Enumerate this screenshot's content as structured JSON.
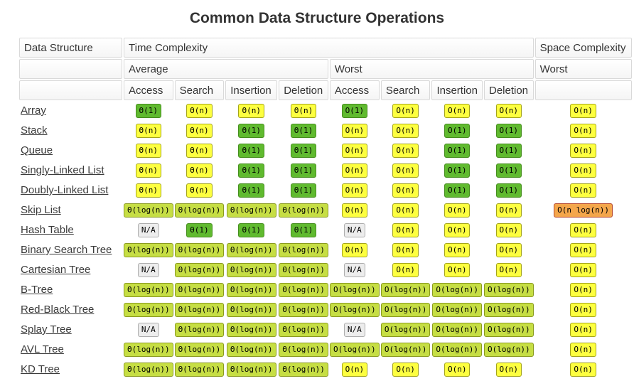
{
  "title": "Common Data Structure Operations",
  "header": {
    "data_structure": "Data Structure",
    "time_complexity": "Time Complexity",
    "space_complexity": "Space Complexity",
    "average": "Average",
    "worst": "Worst",
    "space_worst": "Worst",
    "op_columns": [
      "Access",
      "Search",
      "Insertion",
      "Deletion",
      "Access",
      "Search",
      "Insertion",
      "Deletion"
    ]
  },
  "badge_styles": {
    "green": {
      "bg": "#60ba2f",
      "border": "#468d1f"
    },
    "yellow": {
      "bg": "#fdff40",
      "border": "#a3a41b"
    },
    "yellowgreen": {
      "bg": "#c6de44",
      "border": "#8a9a20"
    },
    "orange": {
      "bg": "#f4a64b",
      "border": "#b4472e"
    },
    "gray": {
      "bg": "#ededed",
      "border": "#adadad"
    }
  },
  "chart_data": {
    "type": "table",
    "title": "Common Data Structure Operations",
    "column_groups": {
      "time_complexity": [
        "Average: Access",
        "Average: Search",
        "Average: Insertion",
        "Average: Deletion",
        "Worst: Access",
        "Worst: Search",
        "Worst: Insertion",
        "Worst: Deletion"
      ],
      "space_complexity": [
        "Worst"
      ]
    },
    "rows": [
      {
        "name": "Array",
        "cells": [
          {
            "text": "Θ(1)",
            "color": "green"
          },
          {
            "text": "Θ(n)",
            "color": "yellow"
          },
          {
            "text": "Θ(n)",
            "color": "yellow"
          },
          {
            "text": "Θ(n)",
            "color": "yellow"
          },
          {
            "text": "O(1)",
            "color": "green"
          },
          {
            "text": "O(n)",
            "color": "yellow"
          },
          {
            "text": "O(n)",
            "color": "yellow"
          },
          {
            "text": "O(n)",
            "color": "yellow"
          },
          {
            "text": "O(n)",
            "color": "yellow"
          }
        ]
      },
      {
        "name": "Stack",
        "cells": [
          {
            "text": "Θ(n)",
            "color": "yellow"
          },
          {
            "text": "Θ(n)",
            "color": "yellow"
          },
          {
            "text": "Θ(1)",
            "color": "green"
          },
          {
            "text": "Θ(1)",
            "color": "green"
          },
          {
            "text": "O(n)",
            "color": "yellow"
          },
          {
            "text": "O(n)",
            "color": "yellow"
          },
          {
            "text": "O(1)",
            "color": "green"
          },
          {
            "text": "O(1)",
            "color": "green"
          },
          {
            "text": "O(n)",
            "color": "yellow"
          }
        ]
      },
      {
        "name": "Queue",
        "cells": [
          {
            "text": "Θ(n)",
            "color": "yellow"
          },
          {
            "text": "Θ(n)",
            "color": "yellow"
          },
          {
            "text": "Θ(1)",
            "color": "green"
          },
          {
            "text": "Θ(1)",
            "color": "green"
          },
          {
            "text": "O(n)",
            "color": "yellow"
          },
          {
            "text": "O(n)",
            "color": "yellow"
          },
          {
            "text": "O(1)",
            "color": "green"
          },
          {
            "text": "O(1)",
            "color": "green"
          },
          {
            "text": "O(n)",
            "color": "yellow"
          }
        ]
      },
      {
        "name": "Singly-Linked List",
        "cells": [
          {
            "text": "Θ(n)",
            "color": "yellow"
          },
          {
            "text": "Θ(n)",
            "color": "yellow"
          },
          {
            "text": "Θ(1)",
            "color": "green"
          },
          {
            "text": "Θ(1)",
            "color": "green"
          },
          {
            "text": "O(n)",
            "color": "yellow"
          },
          {
            "text": "O(n)",
            "color": "yellow"
          },
          {
            "text": "O(1)",
            "color": "green"
          },
          {
            "text": "O(1)",
            "color": "green"
          },
          {
            "text": "O(n)",
            "color": "yellow"
          }
        ]
      },
      {
        "name": "Doubly-Linked List",
        "cells": [
          {
            "text": "Θ(n)",
            "color": "yellow"
          },
          {
            "text": "Θ(n)",
            "color": "yellow"
          },
          {
            "text": "Θ(1)",
            "color": "green"
          },
          {
            "text": "Θ(1)",
            "color": "green"
          },
          {
            "text": "O(n)",
            "color": "yellow"
          },
          {
            "text": "O(n)",
            "color": "yellow"
          },
          {
            "text": "O(1)",
            "color": "green"
          },
          {
            "text": "O(1)",
            "color": "green"
          },
          {
            "text": "O(n)",
            "color": "yellow"
          }
        ]
      },
      {
        "name": "Skip List",
        "cells": [
          {
            "text": "Θ(log(n))",
            "color": "yellowgreen"
          },
          {
            "text": "Θ(log(n))",
            "color": "yellowgreen"
          },
          {
            "text": "Θ(log(n))",
            "color": "yellowgreen"
          },
          {
            "text": "Θ(log(n))",
            "color": "yellowgreen"
          },
          {
            "text": "O(n)",
            "color": "yellow"
          },
          {
            "text": "O(n)",
            "color": "yellow"
          },
          {
            "text": "O(n)",
            "color": "yellow"
          },
          {
            "text": "O(n)",
            "color": "yellow"
          },
          {
            "text": "O(n log(n))",
            "color": "orange"
          }
        ]
      },
      {
        "name": "Hash Table",
        "cells": [
          {
            "text": "N/A",
            "color": "gray"
          },
          {
            "text": "Θ(1)",
            "color": "green"
          },
          {
            "text": "Θ(1)",
            "color": "green"
          },
          {
            "text": "Θ(1)",
            "color": "green"
          },
          {
            "text": "N/A",
            "color": "gray"
          },
          {
            "text": "O(n)",
            "color": "yellow"
          },
          {
            "text": "O(n)",
            "color": "yellow"
          },
          {
            "text": "O(n)",
            "color": "yellow"
          },
          {
            "text": "O(n)",
            "color": "yellow"
          }
        ]
      },
      {
        "name": "Binary Search Tree",
        "cells": [
          {
            "text": "Θ(log(n))",
            "color": "yellowgreen"
          },
          {
            "text": "Θ(log(n))",
            "color": "yellowgreen"
          },
          {
            "text": "Θ(log(n))",
            "color": "yellowgreen"
          },
          {
            "text": "Θ(log(n))",
            "color": "yellowgreen"
          },
          {
            "text": "O(n)",
            "color": "yellow"
          },
          {
            "text": "O(n)",
            "color": "yellow"
          },
          {
            "text": "O(n)",
            "color": "yellow"
          },
          {
            "text": "O(n)",
            "color": "yellow"
          },
          {
            "text": "O(n)",
            "color": "yellow"
          }
        ]
      },
      {
        "name": "Cartesian Tree",
        "cells": [
          {
            "text": "N/A",
            "color": "gray"
          },
          {
            "text": "Θ(log(n))",
            "color": "yellowgreen"
          },
          {
            "text": "Θ(log(n))",
            "color": "yellowgreen"
          },
          {
            "text": "Θ(log(n))",
            "color": "yellowgreen"
          },
          {
            "text": "N/A",
            "color": "gray"
          },
          {
            "text": "O(n)",
            "color": "yellow"
          },
          {
            "text": "O(n)",
            "color": "yellow"
          },
          {
            "text": "O(n)",
            "color": "yellow"
          },
          {
            "text": "O(n)",
            "color": "yellow"
          }
        ]
      },
      {
        "name": "B-Tree",
        "cells": [
          {
            "text": "Θ(log(n))",
            "color": "yellowgreen"
          },
          {
            "text": "Θ(log(n))",
            "color": "yellowgreen"
          },
          {
            "text": "Θ(log(n))",
            "color": "yellowgreen"
          },
          {
            "text": "Θ(log(n))",
            "color": "yellowgreen"
          },
          {
            "text": "O(log(n))",
            "color": "yellowgreen"
          },
          {
            "text": "O(log(n))",
            "color": "yellowgreen"
          },
          {
            "text": "O(log(n))",
            "color": "yellowgreen"
          },
          {
            "text": "O(log(n))",
            "color": "yellowgreen"
          },
          {
            "text": "O(n)",
            "color": "yellow"
          }
        ]
      },
      {
        "name": "Red-Black Tree",
        "cells": [
          {
            "text": "Θ(log(n))",
            "color": "yellowgreen"
          },
          {
            "text": "Θ(log(n))",
            "color": "yellowgreen"
          },
          {
            "text": "Θ(log(n))",
            "color": "yellowgreen"
          },
          {
            "text": "Θ(log(n))",
            "color": "yellowgreen"
          },
          {
            "text": "O(log(n))",
            "color": "yellowgreen"
          },
          {
            "text": "O(log(n))",
            "color": "yellowgreen"
          },
          {
            "text": "O(log(n))",
            "color": "yellowgreen"
          },
          {
            "text": "O(log(n))",
            "color": "yellowgreen"
          },
          {
            "text": "O(n)",
            "color": "yellow"
          }
        ]
      },
      {
        "name": "Splay Tree",
        "cells": [
          {
            "text": "N/A",
            "color": "gray"
          },
          {
            "text": "Θ(log(n))",
            "color": "yellowgreen"
          },
          {
            "text": "Θ(log(n))",
            "color": "yellowgreen"
          },
          {
            "text": "Θ(log(n))",
            "color": "yellowgreen"
          },
          {
            "text": "N/A",
            "color": "gray"
          },
          {
            "text": "O(log(n))",
            "color": "yellowgreen"
          },
          {
            "text": "O(log(n))",
            "color": "yellowgreen"
          },
          {
            "text": "O(log(n))",
            "color": "yellowgreen"
          },
          {
            "text": "O(n)",
            "color": "yellow"
          }
        ]
      },
      {
        "name": "AVL Tree",
        "cells": [
          {
            "text": "Θ(log(n))",
            "color": "yellowgreen"
          },
          {
            "text": "Θ(log(n))",
            "color": "yellowgreen"
          },
          {
            "text": "Θ(log(n))",
            "color": "yellowgreen"
          },
          {
            "text": "Θ(log(n))",
            "color": "yellowgreen"
          },
          {
            "text": "O(log(n))",
            "color": "yellowgreen"
          },
          {
            "text": "O(log(n))",
            "color": "yellowgreen"
          },
          {
            "text": "O(log(n))",
            "color": "yellowgreen"
          },
          {
            "text": "O(log(n))",
            "color": "yellowgreen"
          },
          {
            "text": "O(n)",
            "color": "yellow"
          }
        ]
      },
      {
        "name": "KD Tree",
        "cells": [
          {
            "text": "Θ(log(n))",
            "color": "yellowgreen"
          },
          {
            "text": "Θ(log(n))",
            "color": "yellowgreen"
          },
          {
            "text": "Θ(log(n))",
            "color": "yellowgreen"
          },
          {
            "text": "Θ(log(n))",
            "color": "yellowgreen"
          },
          {
            "text": "O(n)",
            "color": "yellow"
          },
          {
            "text": "O(n)",
            "color": "yellow"
          },
          {
            "text": "O(n)",
            "color": "yellow"
          },
          {
            "text": "O(n)",
            "color": "yellow"
          },
          {
            "text": "O(n)",
            "color": "yellow"
          }
        ]
      }
    ]
  }
}
